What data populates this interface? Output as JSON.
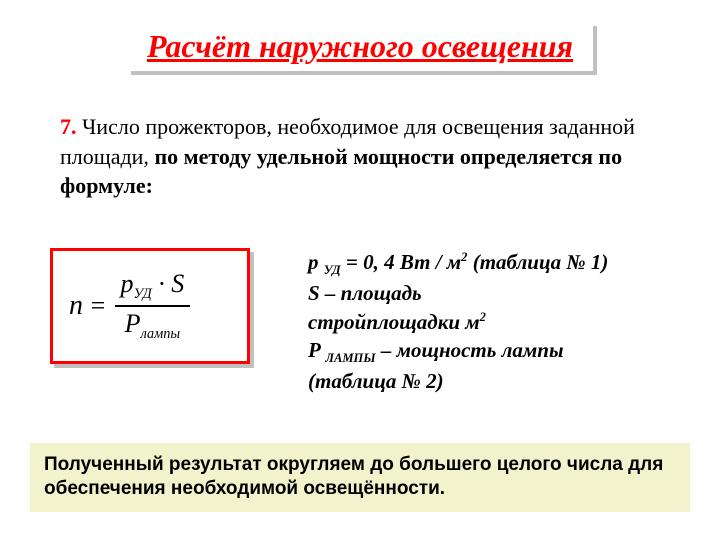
{
  "slide": {
    "title": "Расчёт наружного освещения",
    "intro": {
      "number": "7.",
      "text": " Число прожекторов, необходимое для освещения заданной площади, ",
      "bold_part": "по методу удельной мощности определяется по формуле:"
    },
    "formula": {
      "lhs": "n",
      "eq": "=",
      "numerator_p": "p",
      "numerator_sub": "УД",
      "numerator_dot": " · ",
      "numerator_S": "S",
      "denominator_P": "P",
      "denominator_sub": "лампы"
    },
    "definitions": {
      "line1_a": "p ",
      "line1_sub": "УД",
      "line1_b": " = 0, 4 Вт / м",
      "line1_sup": "2",
      "line1_c": " (таблица № 1)",
      "line2_a": "S – площадь",
      "line3_a": "стройплощадки   м",
      "line3_sup": "2",
      "line4_a": "P ",
      "line4_sub": "ЛАМПЫ",
      "line4_b": " – мощность лампы",
      "line5_a": "(таблица № 2)"
    },
    "footer": "Полученный результат округляем до большего целого числа для обеспечения необходимой освещённости."
  },
  "colors": {
    "accent": "#ff0000",
    "shadow": "#c0c0c0",
    "footer_bg": "#f2f2cc",
    "text": "#000000",
    "bg": "#ffffff"
  }
}
